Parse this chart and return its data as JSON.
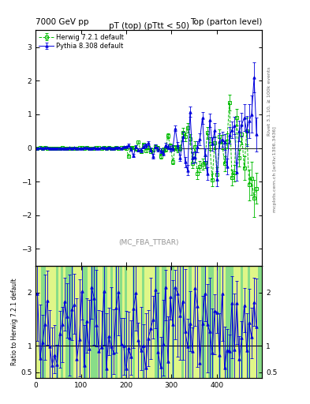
{
  "title_left": "7000 GeV pp",
  "title_right": "Top (parton level)",
  "plot_title": "pT (top) (pTtt < 50)",
  "watermark": "(MC_FBA_TTBAR)",
  "right_label1": "Rivet 3.1.10, ≥ 100k events",
  "right_label2": "mcplots.cern.ch [arXiv:1306.3436]",
  "ylabel_ratio": "Ratio to Herwig 7.2.1 default",
  "xlim": [
    0,
    500
  ],
  "ylim_main": [
    -3.5,
    3.5
  ],
  "ylim_ratio": [
    0.4,
    2.5
  ],
  "yticks_main": [
    -3,
    -2,
    -1,
    0,
    1,
    2,
    3
  ],
  "yticks_ratio": [
    0.5,
    1,
    2
  ],
  "herwig_color": "#00bb00",
  "pythia_color": "#0000dd",
  "herwig_label": "Herwig 7.2.1 default",
  "pythia_label": "Pythia 8.308 default",
  "bg_green": "#88dd88",
  "bg_yellow": "#ffff88",
  "n_points": 90
}
